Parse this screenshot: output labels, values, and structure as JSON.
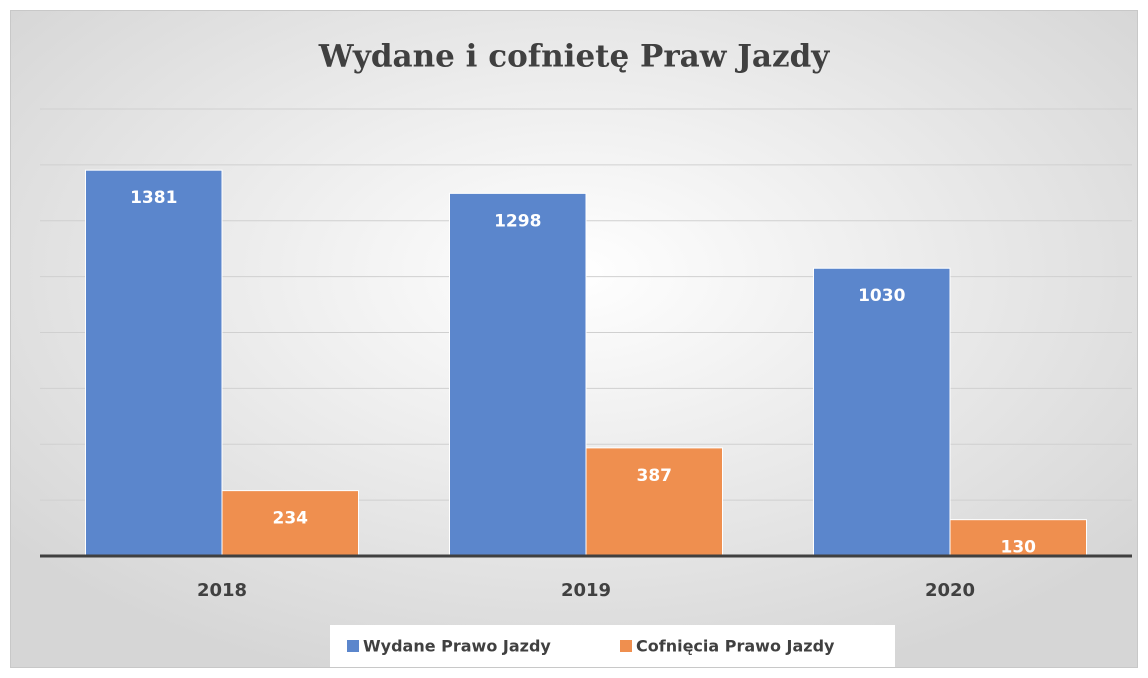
{
  "chart_data": {
    "type": "bar",
    "title": "Wydane i cofnietę Praw Jazdy",
    "categories": [
      "2018",
      "2019",
      "2020"
    ],
    "series": [
      {
        "name": "Wydane Prawo Jazdy",
        "color": "#5b86cc",
        "values": [
          1381,
          1298,
          1030
        ]
      },
      {
        "name": "Cofnięcia Prawo Jazdy",
        "color": "#ef8f4f",
        "values": [
          234,
          387,
          130
        ]
      }
    ],
    "ylim": [
      0,
      1600
    ],
    "yticks": [
      0,
      200,
      400,
      600,
      800,
      1000,
      1200,
      1400,
      1600
    ],
    "grid": true,
    "legend": "bottom"
  }
}
